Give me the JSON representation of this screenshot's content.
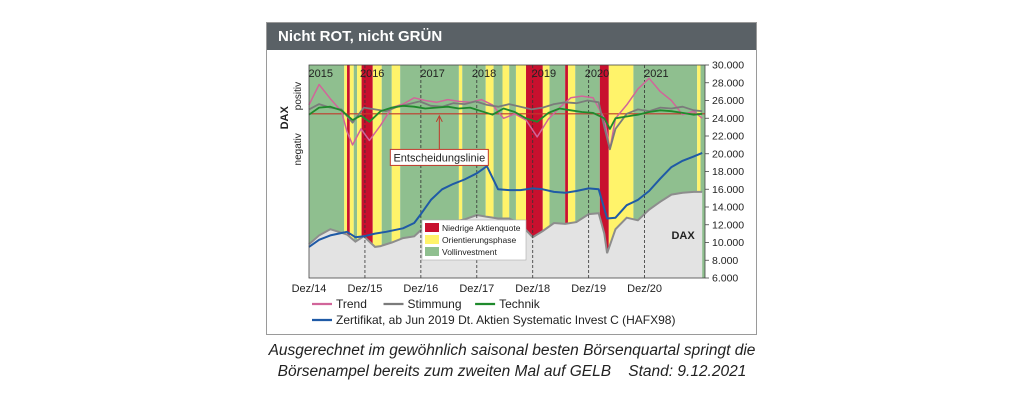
{
  "header": {
    "title": "Nicht ROT, nicht GRÜN"
  },
  "caption": {
    "line1": "Ausgerechnet im gewöhnlich saisonal besten Börsenquartal springt die",
    "line2": "Börsenampel bereits zum zweiten Mal auf GELB    Stand: 9.12.2021"
  },
  "chart_data": {
    "type": "line",
    "title": "Nicht ROT, nicht GRÜN",
    "y_right": {
      "ylim": [
        6000,
        30000
      ],
      "ticks": [
        "30.000",
        "28.000",
        "26.000",
        "24.000",
        "22.000",
        "20.000",
        "18.000",
        "16.000",
        "14.000",
        "12.000",
        "10.000",
        "8.000",
        "6.000"
      ]
    },
    "x_range": [
      2014.92,
      2022.0
    ],
    "x_ticks": [
      {
        "label": "Dez/14",
        "x": 2014.92
      },
      {
        "label": "Dez/15",
        "x": 2015.92
      },
      {
        "label": "Dez/16",
        "x": 2016.92
      },
      {
        "label": "Dez/17",
        "x": 2017.92
      },
      {
        "label": "Dez/18",
        "x": 2018.92
      },
      {
        "label": "Dez/19",
        "x": 2019.92
      },
      {
        "label": "Dez/20",
        "x": 2020.92
      }
    ],
    "year_labels": [
      {
        "label": "2015",
        "x": 2015.13
      },
      {
        "label": "2016",
        "x": 2016.05
      },
      {
        "label": "2017",
        "x": 2017.13
      },
      {
        "label": "2018",
        "x": 2018.05
      },
      {
        "label": "2019",
        "x": 2019.12
      },
      {
        "label": "2020",
        "x": 2020.07
      },
      {
        "label": "2021",
        "x": 2021.13
      }
    ],
    "left_axis": {
      "label": "DAX",
      "positive": "positiv",
      "negative": "negativ"
    },
    "phases": [
      {
        "start": 2014.92,
        "end": 2015.55,
        "type": "green"
      },
      {
        "start": 2015.55,
        "end": 2015.6,
        "type": "yellow"
      },
      {
        "start": 2015.6,
        "end": 2015.65,
        "type": "red"
      },
      {
        "start": 2015.65,
        "end": 2015.72,
        "type": "yellow"
      },
      {
        "start": 2015.72,
        "end": 2015.78,
        "type": "green"
      },
      {
        "start": 2015.78,
        "end": 2015.86,
        "type": "yellow"
      },
      {
        "start": 2015.86,
        "end": 2016.06,
        "type": "red"
      },
      {
        "start": 2016.06,
        "end": 2016.22,
        "type": "yellow"
      },
      {
        "start": 2016.22,
        "end": 2016.4,
        "type": "green"
      },
      {
        "start": 2016.4,
        "end": 2016.55,
        "type": "yellow"
      },
      {
        "start": 2016.55,
        "end": 2017.6,
        "type": "green"
      },
      {
        "start": 2017.6,
        "end": 2017.66,
        "type": "yellow"
      },
      {
        "start": 2017.66,
        "end": 2018.08,
        "type": "green"
      },
      {
        "start": 2018.08,
        "end": 2018.22,
        "type": "yellow"
      },
      {
        "start": 2018.22,
        "end": 2018.38,
        "type": "green"
      },
      {
        "start": 2018.38,
        "end": 2018.5,
        "type": "yellow"
      },
      {
        "start": 2018.5,
        "end": 2018.62,
        "type": "green"
      },
      {
        "start": 2018.62,
        "end": 2018.8,
        "type": "yellow"
      },
      {
        "start": 2018.8,
        "end": 2019.1,
        "type": "red"
      },
      {
        "start": 2019.1,
        "end": 2019.22,
        "type": "yellow"
      },
      {
        "start": 2019.22,
        "end": 2019.5,
        "type": "green"
      },
      {
        "start": 2019.5,
        "end": 2019.55,
        "type": "red"
      },
      {
        "start": 2019.55,
        "end": 2019.68,
        "type": "yellow"
      },
      {
        "start": 2019.68,
        "end": 2020.12,
        "type": "green"
      },
      {
        "start": 2020.12,
        "end": 2020.28,
        "type": "red"
      },
      {
        "start": 2020.28,
        "end": 2020.72,
        "type": "yellow"
      },
      {
        "start": 2020.72,
        "end": 2021.86,
        "type": "green"
      },
      {
        "start": 2021.86,
        "end": 2021.92,
        "type": "yellow"
      },
      {
        "start": 2021.92,
        "end": 2022.0,
        "type": "green"
      }
    ],
    "phase_colors": {
      "red": "#c8102e",
      "yellow": "#fff36a",
      "green": "#8fbf8f"
    },
    "legend_phases": [
      "Niedrige Aktienquote",
      "Orientierungsphase",
      "Vollinvestment"
    ],
    "annotation": {
      "text": "Entscheidungslinie",
      "x": 2017.25
    },
    "dax_label": "DAX",
    "series": [
      {
        "name": "DAX",
        "color": "#9d9d9d",
        "x": [
          2014.92,
          2015.1,
          2015.3,
          2015.45,
          2015.6,
          2015.75,
          2015.9,
          2016.1,
          2016.2,
          2016.4,
          2016.6,
          2016.8,
          2016.92,
          2017.1,
          2017.3,
          2017.5,
          2017.7,
          2017.92,
          2018.1,
          2018.3,
          2018.5,
          2018.7,
          2018.92,
          2019.1,
          2019.3,
          2019.5,
          2019.7,
          2019.92,
          2020.1,
          2020.2,
          2020.25,
          2020.4,
          2020.6,
          2020.8,
          2021.0,
          2021.2,
          2021.4,
          2021.6,
          2021.8,
          2021.95
        ],
        "y": [
          9800,
          10800,
          11500,
          11200,
          10900,
          10100,
          10700,
          9500,
          9600,
          10000,
          10500,
          10700,
          11400,
          12000,
          12400,
          12300,
          12600,
          13100,
          12900,
          12700,
          12700,
          12100,
          10600,
          11300,
          12200,
          12100,
          12300,
          13200,
          13300,
          11000,
          8800,
          11500,
          12800,
          12500,
          13700,
          14600,
          15400,
          15600,
          15700,
          15700
        ]
      },
      {
        "name": "Zertifikat, ab Jun 2019 Dt. Aktien Systematic Invest C (HAFX98)",
        "color": "#1f5aa6",
        "x": [
          2014.92,
          2015.1,
          2015.3,
          2015.45,
          2015.6,
          2015.75,
          2015.9,
          2016.1,
          2016.3,
          2016.6,
          2016.8,
          2016.92,
          2017.1,
          2017.3,
          2017.5,
          2017.7,
          2017.92,
          2018.1,
          2018.3,
          2018.5,
          2018.7,
          2018.92,
          2019.1,
          2019.3,
          2019.5,
          2019.7,
          2019.92,
          2020.1,
          2020.25,
          2020.4,
          2020.6,
          2020.8,
          2021.0,
          2021.2,
          2021.4,
          2021.6,
          2021.8,
          2021.95
        ],
        "y": [
          9500,
          10300,
          10800,
          11000,
          11200,
          10600,
          10700,
          11000,
          11200,
          11600,
          12200,
          13200,
          14800,
          16000,
          16600,
          17100,
          17800,
          18600,
          16000,
          15900,
          15900,
          16100,
          16000,
          15700,
          15600,
          15800,
          16100,
          16000,
          12700,
          12800,
          14200,
          14800,
          15800,
          17200,
          18500,
          19200,
          19700,
          20100
        ]
      },
      {
        "name": "Trend",
        "color": "#d1659a",
        "x": [
          2014.92,
          2015.1,
          2015.3,
          2015.5,
          2015.6,
          2015.7,
          2015.85,
          2016.0,
          2016.2,
          2016.4,
          2016.6,
          2016.8,
          2017.0,
          2017.2,
          2017.4,
          2017.6,
          2017.8,
          2018.0,
          2018.2,
          2018.4,
          2018.6,
          2018.8,
          2019.0,
          2019.2,
          2019.4,
          2019.6,
          2019.8,
          2020.0,
          2020.2,
          2020.3,
          2020.4,
          2020.6,
          2020.8,
          2021.0,
          2021.2,
          2021.4,
          2021.6,
          2021.8,
          2021.95
        ],
        "y": [
          25500,
          27800,
          26200,
          24800,
          22500,
          21000,
          22800,
          21500,
          23200,
          25200,
          25600,
          26300,
          26000,
          25800,
          26100,
          25900,
          25800,
          26100,
          25500,
          24000,
          24500,
          23800,
          21900,
          23900,
          25200,
          26300,
          26500,
          26300,
          24000,
          20500,
          24000,
          25500,
          27300,
          28500,
          27000,
          26000,
          24400,
          24800,
          24000
        ]
      },
      {
        "name": "Stimmung",
        "color": "#7b7b7b",
        "x": [
          2014.92,
          2015.1,
          2015.3,
          2015.5,
          2015.7,
          2015.9,
          2016.1,
          2016.3,
          2016.5,
          2016.7,
          2016.9,
          2017.1,
          2017.3,
          2017.5,
          2017.7,
          2017.9,
          2018.1,
          2018.3,
          2018.5,
          2018.7,
          2018.9,
          2019.1,
          2019.3,
          2019.5,
          2019.7,
          2019.9,
          2020.1,
          2020.2,
          2020.3,
          2020.4,
          2020.6,
          2020.8,
          2021.0,
          2021.2,
          2021.4,
          2021.6,
          2021.8,
          2021.95
        ],
        "y": [
          25000,
          25600,
          25200,
          25000,
          23500,
          25200,
          25000,
          24800,
          25300,
          25600,
          25900,
          25400,
          25300,
          25700,
          25600,
          25900,
          25500,
          25300,
          25600,
          25300,
          25000,
          25200,
          25600,
          25800,
          25700,
          26000,
          25800,
          23000,
          20500,
          22800,
          24500,
          25000,
          24800,
          25200,
          25100,
          25300,
          24900,
          24800
        ]
      },
      {
        "name": "Technik",
        "color": "#1f8a2c",
        "x": [
          2014.92,
          2015.1,
          2015.3,
          2015.5,
          2015.7,
          2015.85,
          2016.0,
          2016.2,
          2016.4,
          2016.6,
          2016.8,
          2017.0,
          2017.2,
          2017.4,
          2017.6,
          2017.8,
          2018.0,
          2018.2,
          2018.4,
          2018.6,
          2018.8,
          2019.0,
          2019.2,
          2019.4,
          2019.6,
          2019.8,
          2020.0,
          2020.2,
          2020.3,
          2020.4,
          2020.6,
          2020.8,
          2021.0,
          2021.2,
          2021.4,
          2021.6,
          2021.8,
          2021.95
        ],
        "y": [
          24400,
          25200,
          25300,
          24900,
          23800,
          24300,
          23600,
          24800,
          25200,
          25400,
          25300,
          25100,
          25200,
          25300,
          25100,
          25200,
          24800,
          24400,
          25100,
          24700,
          24000,
          23600,
          24600,
          25100,
          24900,
          24700,
          24600,
          24000,
          22800,
          24000,
          24200,
          24400,
          24700,
          24900,
          24800,
          24600,
          24400,
          24500
        ]
      }
    ],
    "decision_line": 24500,
    "legend": [
      {
        "label": "Trend",
        "color": "#d1659a"
      },
      {
        "label": "Stimmung",
        "color": "#7b7b7b"
      },
      {
        "label": "Technik",
        "color": "#1f8a2c"
      },
      {
        "label": "Zertifikat, ab Jun 2019 Dt. Aktien Systematic Invest C (HAFX98)",
        "color": "#1f5aa6"
      }
    ]
  }
}
